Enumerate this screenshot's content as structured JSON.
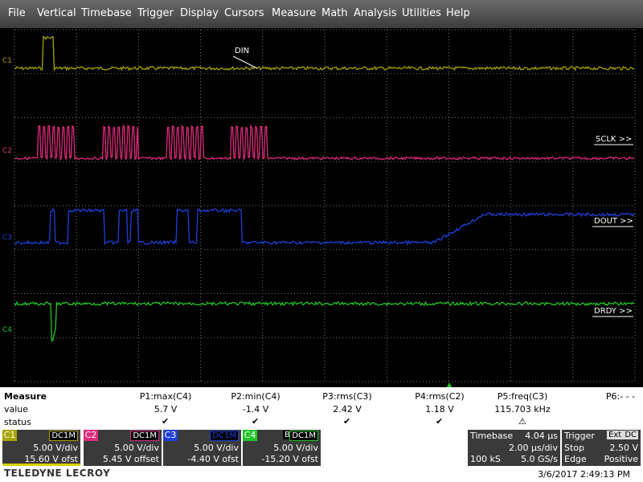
{
  "menu": [
    "File",
    "Vertical",
    "Timebase",
    "Trigger",
    "Display",
    "Cursors",
    "Measure",
    "Math",
    "Analysis",
    "Utilities",
    "Help"
  ],
  "traces": [
    {
      "label": "C1",
      "annotation": "DIN"
    },
    {
      "label": "C2",
      "annotation": "SCLK >>"
    },
    {
      "label": "C3",
      "annotation": "DOUT >>"
    },
    {
      "label": "C4",
      "annotation": "DRDY >>"
    }
  ],
  "measure": {
    "title": "Measure",
    "row_labels": [
      "value",
      "status"
    ],
    "params": [
      {
        "name": "P1:max(C4)",
        "value": "5.7 V"
      },
      {
        "name": "P2:min(C4)",
        "value": "-1.4 V"
      },
      {
        "name": "P3:rms(C3)",
        "value": "2.42 V"
      },
      {
        "name": "P4:rms(C2)",
        "value": "1.18 V"
      },
      {
        "name": "P5:freq(C3)",
        "value": "115.703 kHz"
      },
      {
        "name": "P6:- - -"
      }
    ]
  },
  "channels": [
    {
      "name": "C1",
      "coupling": "DC1M",
      "scale": "5.00 V/div",
      "offset": "15.60 V ofst"
    },
    {
      "name": "C2",
      "coupling": "DC1M",
      "scale": "5.00 V/div",
      "offset": "5.45 V offset"
    },
    {
      "name": "C3",
      "coupling": "DC1M",
      "scale": "5.00 V/div",
      "offset": "-4.40 V ofst"
    },
    {
      "name": "C4",
      "bandwidth": "BwL",
      "coupling": "DC1M",
      "scale": "5.00 V/div",
      "offset": "-15.20 V ofst"
    }
  ],
  "timebase": {
    "title": "Timebase",
    "delay": "4.04 µs",
    "scale": "2.00 µs/div",
    "samples": "100 kS",
    "rate": "5.0 GS/s"
  },
  "trigger": {
    "title": "Trigger",
    "source": "Ext",
    "coupling": "DC",
    "mode": "Stop",
    "level": "2.50 V",
    "type": "Edge",
    "slope": "Positive"
  },
  "footer": {
    "brand": "TELEDYNE LECROY",
    "timestamp": "3/6/2017 2:49:13 PM"
  }
}
